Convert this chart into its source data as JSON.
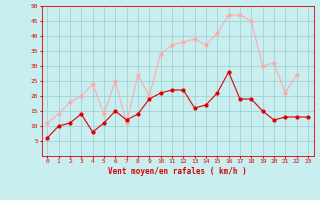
{
  "hours": [
    0,
    1,
    2,
    3,
    4,
    5,
    6,
    7,
    8,
    9,
    10,
    11,
    12,
    13,
    14,
    15,
    16,
    17,
    18,
    19,
    20,
    21,
    22,
    23
  ],
  "vent_moyen": [
    6,
    10,
    11,
    14,
    8,
    11,
    15,
    12,
    14,
    19,
    21,
    22,
    22,
    16,
    17,
    21,
    28,
    19,
    19,
    15,
    12,
    13,
    13,
    13
  ],
  "rafales": [
    11,
    14,
    18,
    20,
    24,
    14,
    25,
    11,
    27,
    20,
    34,
    37,
    38,
    39,
    37,
    41,
    47,
    47,
    45,
    30,
    31,
    21,
    27,
    null
  ],
  "color_moyen": "#dd0000",
  "color_rafales": "#ffaaaa",
  "bg_color": "#c8eef0",
  "grid_color": "#99cccc",
  "xlabel": "Vent moyen/en rafales ( km/h )",
  "xlabel_color": "#dd0000",
  "ylim_min": 0,
  "ylim_max": 50,
  "yticks": [
    5,
    10,
    15,
    20,
    25,
    30,
    35,
    40,
    45,
    50
  ],
  "xlim_min": -0.5,
  "xlim_max": 23.5
}
